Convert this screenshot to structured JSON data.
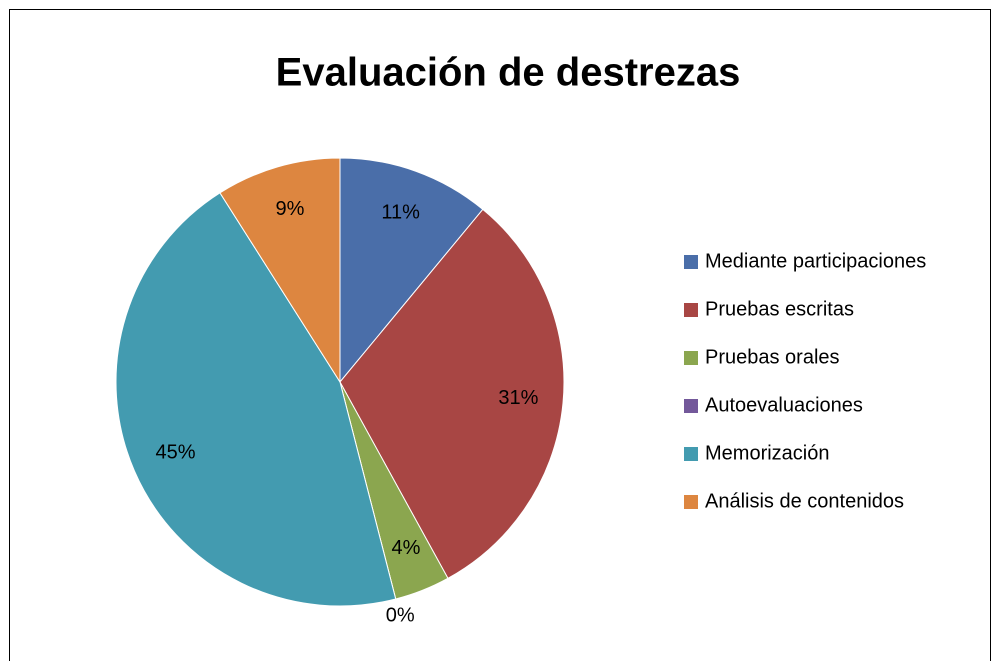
{
  "chart_data": {
    "type": "pie",
    "title": "Evaluación de destrezas",
    "categories": [
      "Mediante participaciones",
      "Pruebas escritas",
      "Pruebas orales",
      "Autoevaluaciones",
      "Memorización",
      "Análisis de contenidos"
    ],
    "values": [
      11,
      31,
      4,
      0,
      45,
      9
    ],
    "value_labels": [
      "11%",
      "31%",
      "4%",
      "0%",
      "45%",
      "9%"
    ],
    "colors": [
      "#4a6ea9",
      "#a84644",
      "#8ba64f",
      "#73589a",
      "#439bb0",
      "#dd8640"
    ],
    "legend": "right"
  }
}
